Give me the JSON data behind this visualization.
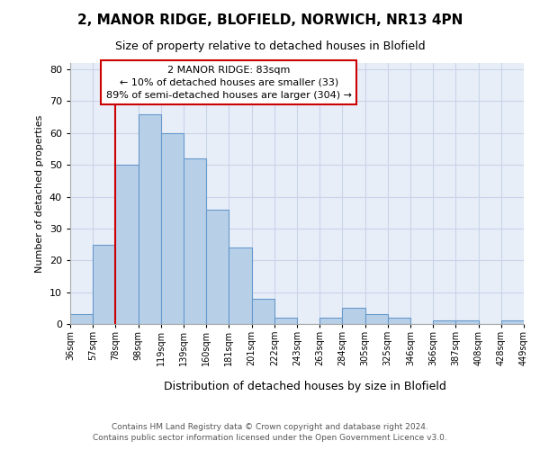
{
  "title_line1": "2, MANOR RIDGE, BLOFIELD, NORWICH, NR13 4PN",
  "title_line2": "Size of property relative to detached houses in Blofield",
  "xlabel": "Distribution of detached houses by size in Blofield",
  "ylabel": "Number of detached properties",
  "bins": [
    "36sqm",
    "57sqm",
    "78sqm",
    "98sqm",
    "119sqm",
    "139sqm",
    "160sqm",
    "181sqm",
    "201sqm",
    "222sqm",
    "243sqm",
    "263sqm",
    "284sqm",
    "305sqm",
    "325sqm",
    "346sqm",
    "366sqm",
    "387sqm",
    "408sqm",
    "428sqm",
    "449sqm"
  ],
  "values": [
    3,
    25,
    50,
    66,
    60,
    52,
    36,
    24,
    8,
    2,
    0,
    2,
    5,
    3,
    2,
    0,
    1,
    1,
    0,
    1
  ],
  "bar_color": "#b8cfe8",
  "bar_edge_color": "#6699cc",
  "vline_color": "#cc0000",
  "vline_pos": 2.0,
  "annotation_title": "2 MANOR RIDGE: 83sqm",
  "annotation_line1": "← 10% of detached houses are smaller (33)",
  "annotation_line2": "89% of semi-detached houses are larger (304) →",
  "annotation_box_color": "#ffffff",
  "annotation_box_edge_color": "#cc0000",
  "ylim": [
    0,
    82
  ],
  "yticks": [
    0,
    10,
    20,
    30,
    40,
    50,
    60,
    70,
    80
  ],
  "footer": "Contains HM Land Registry data © Crown copyright and database right 2024.\nContains public sector information licensed under the Open Government Licence v3.0.",
  "grid_color": "#c8d4e8",
  "bg_color": "#e8eef8",
  "title1_fontsize": 11,
  "title2_fontsize": 9,
  "ylabel_fontsize": 8,
  "xlabel_fontsize": 9,
  "ytick_fontsize": 8,
  "xtick_fontsize": 7,
  "footer_fontsize": 6.5,
  "ann_fontsize": 8
}
